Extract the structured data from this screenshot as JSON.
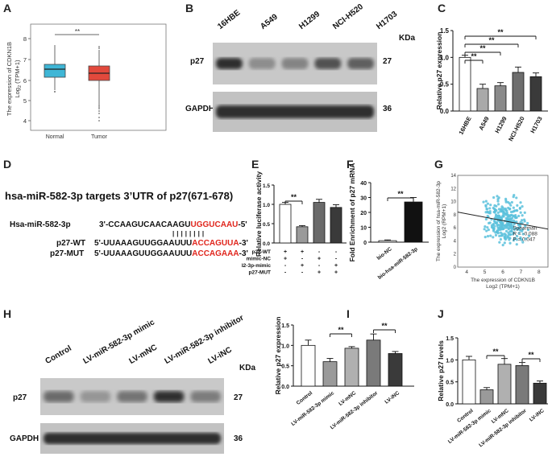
{
  "panels": {
    "A": "A",
    "B": "B",
    "C": "C",
    "D": "D",
    "E": "E",
    "F": "F",
    "G": "G",
    "H": "H",
    "I": "I",
    "J": "J"
  },
  "panel_a": {
    "ylabel_line1": "The expression of CDKN1B",
    "ylabel_line2": "Log",
    "ylabel_sub": "2",
    "ylabel_line2b": " (TPM+1)",
    "sig": "**",
    "ticks": [
      "8",
      "7",
      "6",
      "5",
      "4"
    ],
    "groups": [
      "Normal",
      "Tumor"
    ],
    "colors": {
      "normal": "#3fb6d6",
      "tumor": "#e2493c"
    }
  },
  "panel_b": {
    "lanes": [
      "16HBE",
      "A549",
      "H1299",
      "NCI-H520",
      "H1703"
    ],
    "kda": "KDa",
    "bands": [
      {
        "name": "p27",
        "size": "27"
      },
      {
        "name": "GAPDH",
        "size": "36"
      }
    ],
    "p27_intensity": [
      0.9,
      0.35,
      0.4,
      0.7,
      0.62
    ]
  },
  "chart_data": [
    {
      "type": "bar",
      "panel": "C",
      "ylabel": "Relative p27 expression",
      "categories": [
        "16HBE",
        "A549",
        "H1299",
        "NCI-H520",
        "H1703"
      ],
      "values": [
        1.0,
        0.42,
        0.47,
        0.72,
        0.64
      ],
      "errors": [
        0.04,
        0.08,
        0.06,
        0.1,
        0.07
      ],
      "yticks": [
        "0.0",
        "0.5",
        "1.0",
        "1.5"
      ],
      "ylim": [
        0,
        1.5
      ],
      "sig": [
        "**",
        "**",
        "**",
        "**"
      ]
    },
    {
      "type": "bar",
      "panel": "E",
      "ylabel": "Relative luciferase activity",
      "values": [
        1.0,
        0.42,
        1.05,
        0.92
      ],
      "errors": [
        0.05,
        0.03,
        0.08,
        0.07
      ],
      "yticks": [
        "0.0",
        "0.5",
        "1.0",
        "1.5"
      ],
      "ylim": [
        0,
        1.5
      ],
      "sig": "**",
      "rows": [
        {
          "label": "p27-WT",
          "marks": [
            "+",
            "+",
            "-",
            "-"
          ]
        },
        {
          "label": "mimic-NC",
          "marks": [
            "+",
            "-",
            "+",
            "-"
          ]
        },
        {
          "label": "Hsa-miR-582-3p-mimic",
          "marks": [
            "-",
            "+",
            "-",
            "+"
          ]
        },
        {
          "label": "p27-MUT",
          "marks": [
            "-",
            "-",
            "+",
            "+"
          ]
        }
      ]
    },
    {
      "type": "bar",
      "panel": "F",
      "ylabel": "Fold Enrichment of p27 mRNA",
      "categories": [
        "bio-NC",
        "bio-hsa-miR-582-3p"
      ],
      "values": [
        1,
        27
      ],
      "errors": [
        0.5,
        3
      ],
      "yticks": [
        "0",
        "10",
        "20",
        "30",
        "40"
      ],
      "ylim": [
        0,
        40
      ],
      "sig": "**"
    },
    {
      "type": "scatter",
      "panel": "G",
      "ylabel": "The expression of hsa-miR-582-3p",
      "ylabel2": "Log2 (RPM+1)",
      "xlabel": "The expression of CDKN1B",
      "xlabel2": "Log2 (TPM+1)",
      "xticks": [
        "4",
        "5",
        "6",
        "7",
        "8"
      ],
      "yticks": [
        "0",
        "2",
        "4",
        "6",
        "8",
        "10",
        "12",
        "14"
      ],
      "xlim": [
        3.5,
        8.5
      ],
      "ylim": [
        0,
        14
      ],
      "stat_lines": [
        "Spearman",
        "R = -0.088",
        "P = 0.047"
      ]
    },
    {
      "type": "bar",
      "panel": "I",
      "ylabel": "Relative p27 expression",
      "categories": [
        "Control",
        "LV-miR-582-3p mimic",
        "LV-mNC",
        "LV-miR-582-3p inhibitor",
        "LV-iNC"
      ],
      "values": [
        1.0,
        0.6,
        0.93,
        1.13,
        0.8
      ],
      "errors": [
        0.13,
        0.08,
        0.04,
        0.15,
        0.05
      ],
      "yticks": [
        "0.0",
        "0.5",
        "1.0",
        "1.5"
      ],
      "ylim": [
        0,
        1.5
      ],
      "sig": [
        "**",
        "**"
      ]
    },
    {
      "type": "bar",
      "panel": "J",
      "ylabel": "Relative p27 levels",
      "categories": [
        "Control",
        "LV-miR-582-3p mimic",
        "LV-mNC",
        "LV-miR-582-3p inhibitor",
        "LV-iNC"
      ],
      "values": [
        1.0,
        0.32,
        0.9,
        0.87,
        0.47
      ],
      "errors": [
        0.08,
        0.05,
        0.13,
        0.07,
        0.05
      ],
      "yticks": [
        "0.0",
        "0.5",
        "1.0",
        "1.5"
      ],
      "ylim": [
        0,
        1.5
      ],
      "sig": [
        "**",
        "**"
      ]
    }
  ],
  "panel_d": {
    "title": "hsa-miR-582-3p targets 3’UTR of p27(671-678)",
    "mir_label": "Hsa-miR-582-3p",
    "mir_seq_a": "3'-CCAAGUCAACAAGU",
    "mir_seq_b": "UGGUCAAU",
    "mir_seq_c": "-5'",
    "pairing": "| | | | | | | |",
    "wt_label": "p27-WT",
    "wt_seq_a": "5'-UUAAAGUUGGAAUUU",
    "wt_seq_b": "ACCAGUUA",
    "wt_seq_c": "-3'",
    "mut_label": "p27-MUT",
    "mut_seq_a": "5'-UUAAAGUUGGAAUUU",
    "mut_seq_b": "ACCAGAAA",
    "mut_seq_c": "-3'"
  },
  "panel_h": {
    "lanes": [
      "Control",
      "LV-miR-582-3p mimic",
      "LV-mNC",
      "LV-miR-582-3p inhibitor",
      "LV-iNC"
    ],
    "kda": "KDa",
    "bands": [
      {
        "name": "p27",
        "size": "27"
      },
      {
        "name": "GAPDH",
        "size": "36"
      }
    ],
    "p27_intensity": [
      0.55,
      0.3,
      0.5,
      0.9,
      0.45
    ]
  }
}
